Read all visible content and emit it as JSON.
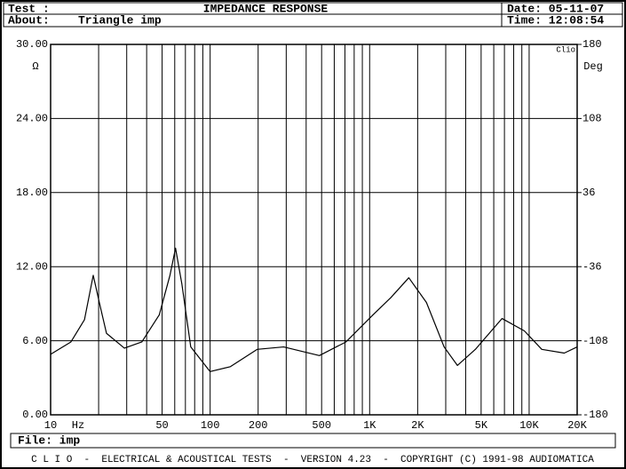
{
  "header": {
    "test_label": "Test :",
    "about_label": "About:",
    "about": "Triangle imp",
    "date": "Date: 05-11-07",
    "time": "Time: 12:08:54"
  },
  "chart_data": {
    "type": "line",
    "title": "IMPEDANCE RESPONSE",
    "y_label": "Ω",
    "y2_label": "Deg",
    "x_unit_label": "Hz",
    "watermark": "Clio",
    "x": [
      10,
      13.4,
      16.3,
      18.5,
      20.2,
      22.4,
      29,
      37.3,
      48,
      56,
      60.7,
      66.5,
      75.6,
      100,
      134,
      197,
      289,
      484,
      710,
      1050,
      1360,
      1760,
      2270,
      2930,
      3550,
      4600,
      6760,
      9330,
      12000,
      16600,
      20000
    ],
    "values": [
      4.9,
      5.9,
      7.7,
      11.3,
      9.1,
      6.6,
      5.4,
      5.9,
      8.1,
      11.3,
      13.5,
      10.6,
      5.5,
      3.5,
      3.9,
      5.3,
      5.5,
      4.8,
      5.9,
      8.1,
      9.5,
      11.1,
      9.1,
      5.5,
      4.0,
      5.3,
      7.8,
      6.8,
      5.3,
      5.0,
      5.5
    ],
    "color": "#000000",
    "log_x": true,
    "xlim": [
      10,
      20000
    ],
    "xticks": [
      10,
      50,
      100,
      200,
      500,
      {
        "value": 1000,
        "label": "1K"
      },
      {
        "value": 2000,
        "label": "2K"
      },
      {
        "value": 5000,
        "label": "5K"
      },
      {
        "value": 10000,
        "label": "10K"
      },
      {
        "value": 20000,
        "label": "20K"
      }
    ],
    "x_minor_ticks": [
      20,
      30,
      40,
      60,
      70,
      80,
      90,
      300,
      400,
      600,
      700,
      800,
      900,
      3000,
      4000,
      6000,
      7000,
      8000,
      9000
    ],
    "ylim": [
      0,
      30
    ],
    "yticks": [
      {
        "value": 0,
        "label": "0.00"
      },
      {
        "value": 6,
        "label": "6.00"
      },
      {
        "value": 12,
        "label": "12.00"
      },
      {
        "value": 18,
        "label": "18.00"
      },
      {
        "value": 24,
        "label": "24.00"
      },
      {
        "value": 30,
        "label": "30.00"
      }
    ],
    "y2lim": [
      -180,
      180
    ],
    "y2ticks": [
      -180,
      -108,
      -36,
      36,
      108,
      180
    ],
    "grid": true
  },
  "file": "File: imp",
  "footer": "C L I O  -  ELECTRICAL & ACOUSTICAL TESTS  -  VERSION 4.23  -  COPYRIGHT (C) 1991-98 AUDIOMATICA"
}
